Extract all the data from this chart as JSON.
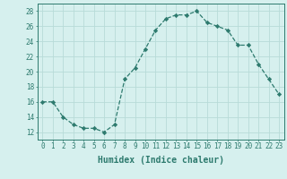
{
  "x": [
    0,
    1,
    2,
    3,
    4,
    5,
    6,
    7,
    8,
    9,
    10,
    11,
    12,
    13,
    14,
    15,
    16,
    17,
    18,
    19,
    20,
    21,
    22,
    23
  ],
  "y": [
    16,
    16,
    14,
    13,
    12.5,
    12.5,
    12,
    13,
    19,
    20.5,
    23,
    25.5,
    27,
    27.5,
    27.5,
    28,
    26.5,
    26,
    25.5,
    23.5,
    23.5,
    21,
    19,
    17
  ],
  "line_color": "#2d7a6e",
  "marker": "D",
  "marker_size": 2.2,
  "background_color": "#d6f0ee",
  "grid_color": "#b8dbd8",
  "xlabel": "Humidex (Indice chaleur)",
  "ylim": [
    11,
    29
  ],
  "xlim": [
    -0.5,
    23.5
  ],
  "yticks": [
    12,
    14,
    16,
    18,
    20,
    22,
    24,
    26,
    28
  ],
  "xtick_labels": [
    "0",
    "1",
    "2",
    "3",
    "4",
    "5",
    "6",
    "7",
    "8",
    "9",
    "10",
    "11",
    "12",
    "13",
    "14",
    "15",
    "16",
    "17",
    "18",
    "19",
    "20",
    "21",
    "22",
    "23"
  ],
  "tick_color": "#2d7a6e",
  "label_fontsize": 7,
  "tick_fontsize": 5.5
}
